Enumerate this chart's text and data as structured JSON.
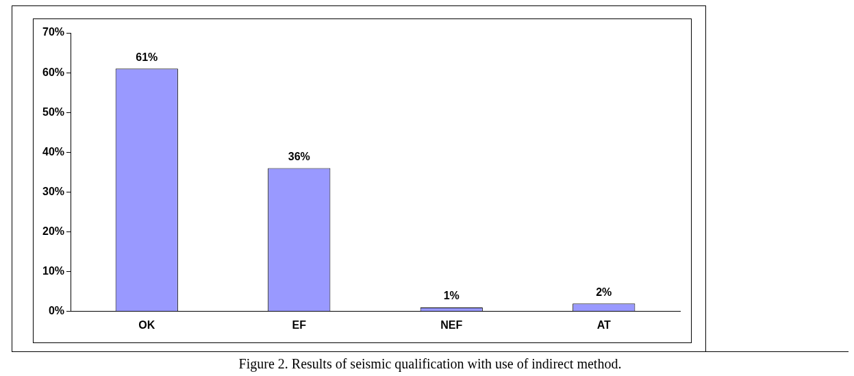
{
  "chart_data": {
    "type": "bar",
    "categories": [
      "OK",
      "EF",
      "NEF",
      "AT"
    ],
    "values": [
      61,
      36,
      1,
      2
    ],
    "value_labels": [
      "61%",
      "36%",
      "1%",
      "2%"
    ],
    "color": "#9999ff",
    "ylim": [
      0,
      70
    ],
    "yticks": [
      {
        "value": 0,
        "label": "0%"
      },
      {
        "value": 10,
        "label": "10%"
      },
      {
        "value": 20,
        "label": "20%"
      },
      {
        "value": 30,
        "label": "30%"
      },
      {
        "value": 40,
        "label": "40%"
      },
      {
        "value": 50,
        "label": "50%"
      },
      {
        "value": 60,
        "label": "60%"
      },
      {
        "value": 70,
        "label": "70%"
      }
    ],
    "grid": false,
    "annotations": [
      "Figure 2. Results of seismic qualification with use of indirect method."
    ]
  }
}
